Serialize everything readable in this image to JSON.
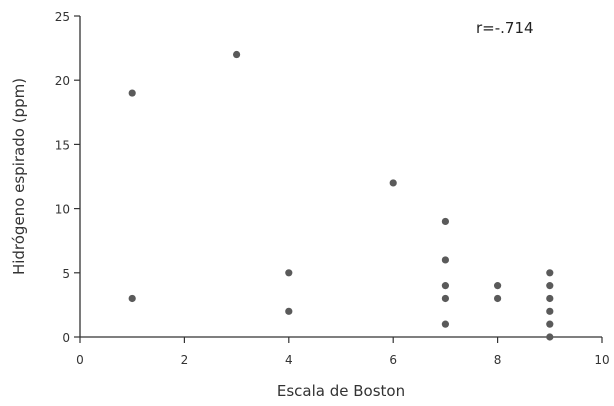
{
  "chart_data": {
    "type": "scatter",
    "title": "",
    "xlabel": "Escala de Boston",
    "ylabel": "Hidrógeno espirado (ppm)",
    "xlim": [
      0,
      10
    ],
    "ylim": [
      0,
      25
    ],
    "xticks": [
      "0",
      "2",
      "4",
      "6",
      "8",
      "10"
    ],
    "yticks": [
      "0",
      "5",
      "10",
      "15",
      "20",
      "25"
    ],
    "grid": false,
    "annotation": "r=-.714",
    "marker_color": "#5a5a5a",
    "axis_color": "#333333",
    "series": [
      {
        "points": [
          [
            1,
            19
          ],
          [
            1,
            3
          ],
          [
            3,
            22
          ],
          [
            4,
            5
          ],
          [
            4,
            2
          ],
          [
            6,
            12
          ],
          [
            7,
            9
          ],
          [
            7,
            6
          ],
          [
            7,
            4
          ],
          [
            7,
            3
          ],
          [
            7,
            1
          ],
          [
            8,
            4
          ],
          [
            8,
            3
          ],
          [
            9,
            5
          ],
          [
            9,
            4
          ],
          [
            9,
            3
          ],
          [
            9,
            2
          ],
          [
            9,
            1
          ],
          [
            9,
            0
          ]
        ]
      }
    ]
  }
}
